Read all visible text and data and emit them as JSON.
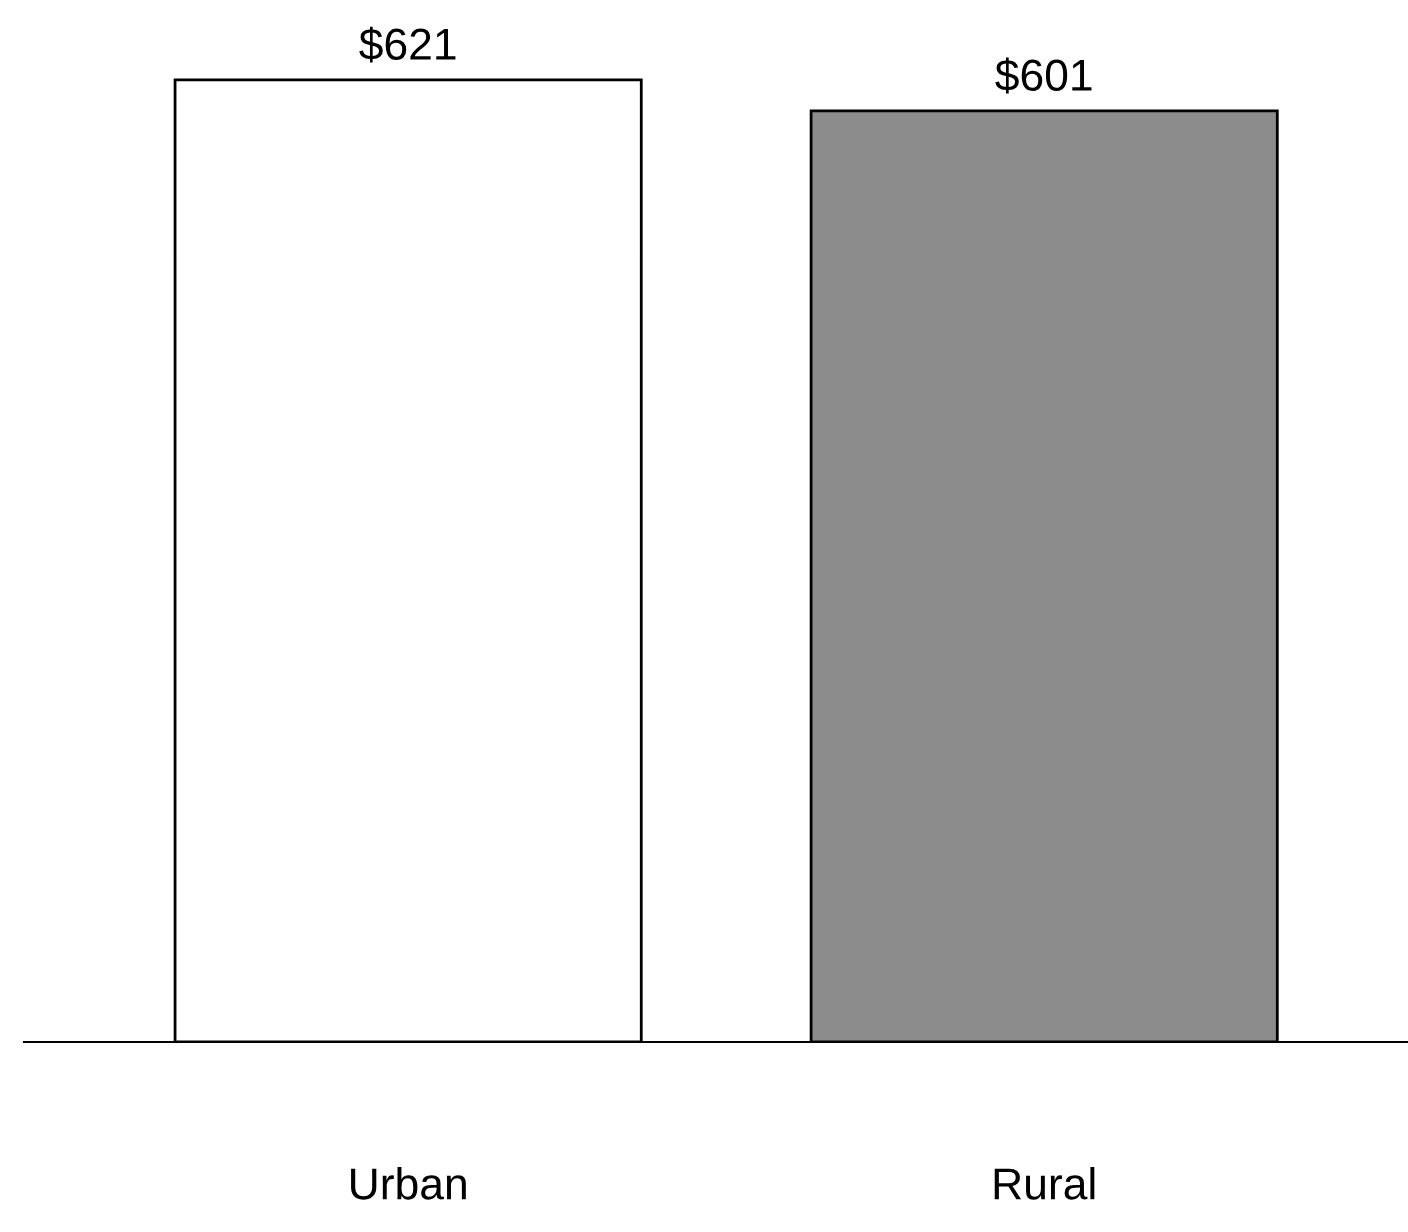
{
  "chart_data": {
    "type": "bar",
    "categories": [
      "Urban",
      "Rural"
    ],
    "values": [
      621,
      601
    ],
    "colors": [
      "#ffffff",
      "#8c8c8c"
    ],
    "value_labels": [
      "$621",
      "$601"
    ],
    "grid": false,
    "legend": false
  }
}
